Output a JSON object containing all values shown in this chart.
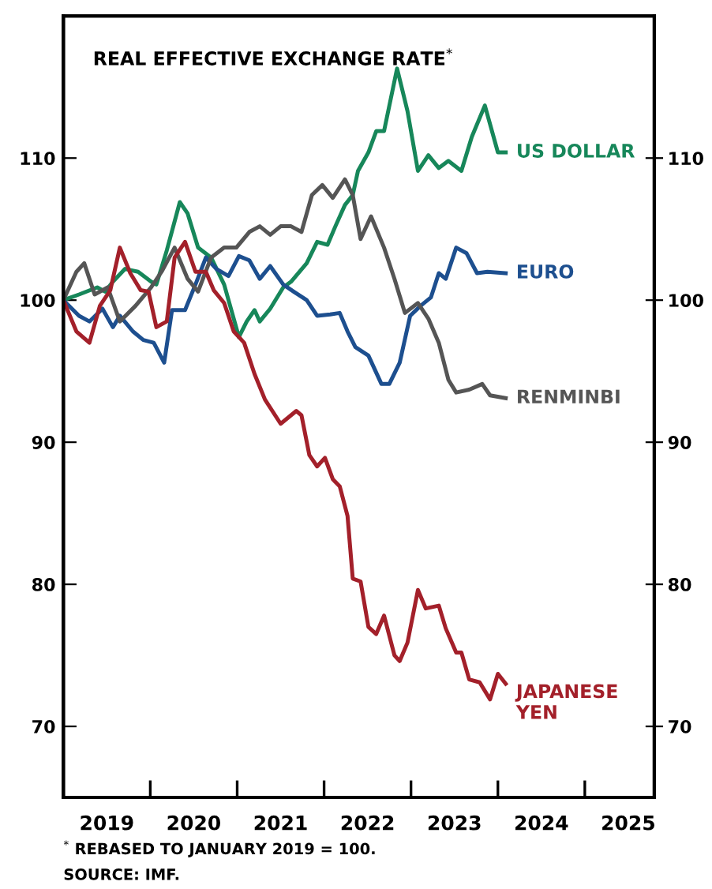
{
  "chart_data": {
    "type": "line",
    "title": "REAL EFFECTIVE EXCHANGE RATE$^{*}$",
    "annotations": [
      "$^{*}$ REBASED TO JANUARY 2019 = 100.",
      "SOURCE: IMF."
    ],
    "xlim": [
      2019,
      2025.8
    ],
    "ylim": [
      65,
      120
    ],
    "y2lim": [
      65,
      120
    ],
    "xticks": [
      {
        "value": 2020,
        "label": null
      },
      {
        "value": 2021,
        "label": null
      },
      {
        "value": 2022,
        "label": null
      },
      {
        "value": 2023,
        "label": null
      },
      {
        "value": 2024,
        "label": null
      },
      {
        "value": 2025,
        "label": null
      },
      {
        "value": 2019.5,
        "label": "2019"
      },
      {
        "value": 2020.5,
        "label": "2020"
      },
      {
        "value": 2021.5,
        "label": "2021"
      },
      {
        "value": 2022.5,
        "label": "2022"
      },
      {
        "value": 2023.5,
        "label": "2023"
      },
      {
        "value": 2024.5,
        "label": "2024"
      },
      {
        "value": 2025.5,
        "label": "2025"
      }
    ],
    "yticks": [
      70,
      80,
      90,
      100,
      110
    ],
    "y2ticks": [
      70,
      80,
      90,
      100,
      110
    ],
    "grid": false,
    "legend": false,
    "marker": "none",
    "line_style": "solid",
    "series": [
      {
        "name": "US DOLLAR",
        "color": "#17875a",
        "x": [
          2019.0,
          2019.18,
          2019.39,
          2019.48,
          2019.57,
          2019.71,
          2019.86,
          2020.01,
          2020.07,
          2020.19,
          2020.34,
          2020.43,
          2020.55,
          2020.7,
          2020.85,
          2021.02,
          2021.11,
          2021.2,
          2021.26,
          2021.38,
          2021.53,
          2021.62,
          2021.8,
          2021.92,
          2022.04,
          2022.13,
          2022.24,
          2022.33,
          2022.39,
          2022.51,
          2022.6,
          2022.69,
          2022.84,
          2022.96,
          2023.08,
          2023.2,
          2023.32,
          2023.43,
          2023.58,
          2023.7,
          2023.85,
          2024.0,
          2024.09
        ],
        "values": [
          100,
          100.4,
          100.9,
          100.6,
          101.3,
          102.2,
          102.0,
          101.3,
          101.1,
          103.5,
          106.9,
          106.1,
          103.7,
          103.0,
          101.1,
          97.4,
          98.5,
          99.3,
          98.5,
          99.4,
          100.9,
          101.3,
          102.6,
          104.1,
          103.9,
          105.2,
          106.7,
          107.4,
          109.1,
          110.4,
          111.9,
          111.9,
          116.3,
          113.3,
          109.1,
          110.2,
          109.3,
          109.8,
          109.1,
          111.5,
          113.7,
          110.4,
          110.4
        ]
      },
      {
        "name": "EURO",
        "color": "#1d4f8f",
        "x": [
          2019.0,
          2019.18,
          2019.3,
          2019.45,
          2019.57,
          2019.65,
          2019.8,
          2019.92,
          2020.04,
          2020.16,
          2020.25,
          2020.4,
          2020.52,
          2020.64,
          2020.76,
          2020.9,
          2021.02,
          2021.14,
          2021.26,
          2021.38,
          2021.53,
          2021.65,
          2021.8,
          2021.92,
          2022.07,
          2022.18,
          2022.27,
          2022.36,
          2022.51,
          2022.66,
          2022.75,
          2022.87,
          2022.99,
          2023.11,
          2023.23,
          2023.32,
          2023.4,
          2023.52,
          2023.64,
          2023.76,
          2023.88,
          2024.09
        ],
        "values": [
          100,
          98.9,
          98.5,
          99.4,
          98.1,
          98.9,
          97.8,
          97.2,
          97.0,
          95.6,
          99.3,
          99.3,
          101.1,
          103.0,
          102.2,
          101.7,
          103.1,
          102.8,
          101.5,
          102.4,
          101.1,
          100.6,
          100,
          98.9,
          99.0,
          99.1,
          97.8,
          96.7,
          96.1,
          94.1,
          94.1,
          95.6,
          98.9,
          99.6,
          100.2,
          101.9,
          101.5,
          103.7,
          103.3,
          101.9,
          102.0,
          101.9
        ]
      },
      {
        "name": "RENMINBI",
        "color": "#555555",
        "x": [
          2019.0,
          2019.15,
          2019.24,
          2019.36,
          2019.51,
          2019.65,
          2019.83,
          2020.01,
          2020.13,
          2020.28,
          2020.43,
          2020.55,
          2020.7,
          2020.85,
          2020.99,
          2021.14,
          2021.26,
          2021.38,
          2021.5,
          2021.62,
          2021.74,
          2021.86,
          2021.98,
          2022.1,
          2022.24,
          2022.33,
          2022.42,
          2022.54,
          2022.69,
          2022.81,
          2022.93,
          2023.08,
          2023.2,
          2023.32,
          2023.43,
          2023.52,
          2023.67,
          2023.82,
          2023.91,
          2024.09
        ],
        "values": [
          100,
          102.0,
          102.6,
          100.4,
          100.9,
          98.5,
          99.6,
          100.9,
          102.0,
          103.7,
          101.5,
          100.6,
          103.0,
          103.7,
          103.7,
          104.8,
          105.2,
          104.6,
          105.2,
          105.2,
          104.8,
          107.4,
          108.1,
          107.2,
          108.5,
          107.4,
          104.3,
          105.9,
          103.7,
          101.5,
          99.1,
          99.8,
          98.7,
          97.0,
          94.4,
          93.5,
          93.7,
          94.1,
          93.3,
          93.1
        ]
      },
      {
        "name": "JAPANESE\nYEN",
        "color": "#a3202a",
        "x": [
          2019.0,
          2019.15,
          2019.3,
          2019.42,
          2019.54,
          2019.65,
          2019.77,
          2019.89,
          2019.98,
          2020.07,
          2020.19,
          2020.28,
          2020.4,
          2020.52,
          2020.64,
          2020.73,
          2020.85,
          2020.96,
          2021.08,
          2021.2,
          2021.32,
          2021.5,
          2021.68,
          2021.74,
          2021.83,
          2021.92,
          2022.01,
          2022.1,
          2022.18,
          2022.27,
          2022.33,
          2022.42,
          2022.51,
          2022.6,
          2022.69,
          2022.81,
          2022.87,
          2022.96,
          2023.08,
          2023.17,
          2023.32,
          2023.4,
          2023.52,
          2023.58,
          2023.67,
          2023.79,
          2023.91,
          2024.0,
          2024.09
        ],
        "values": [
          100,
          97.8,
          97.0,
          99.6,
          100.7,
          103.7,
          101.9,
          100.7,
          100.6,
          98.1,
          98.5,
          103.0,
          104.1,
          102.0,
          102.0,
          100.7,
          99.8,
          97.8,
          97.0,
          94.8,
          93.0,
          91.3,
          92.2,
          91.9,
          89.1,
          88.3,
          88.9,
          87.4,
          86.9,
          84.8,
          80.4,
          80.2,
          77.0,
          76.5,
          77.8,
          75.0,
          74.6,
          75.9,
          79.6,
          78.3,
          78.5,
          76.9,
          75.2,
          75.2,
          73.3,
          73.1,
          71.9,
          73.7,
          73.0
        ]
      }
    ]
  }
}
